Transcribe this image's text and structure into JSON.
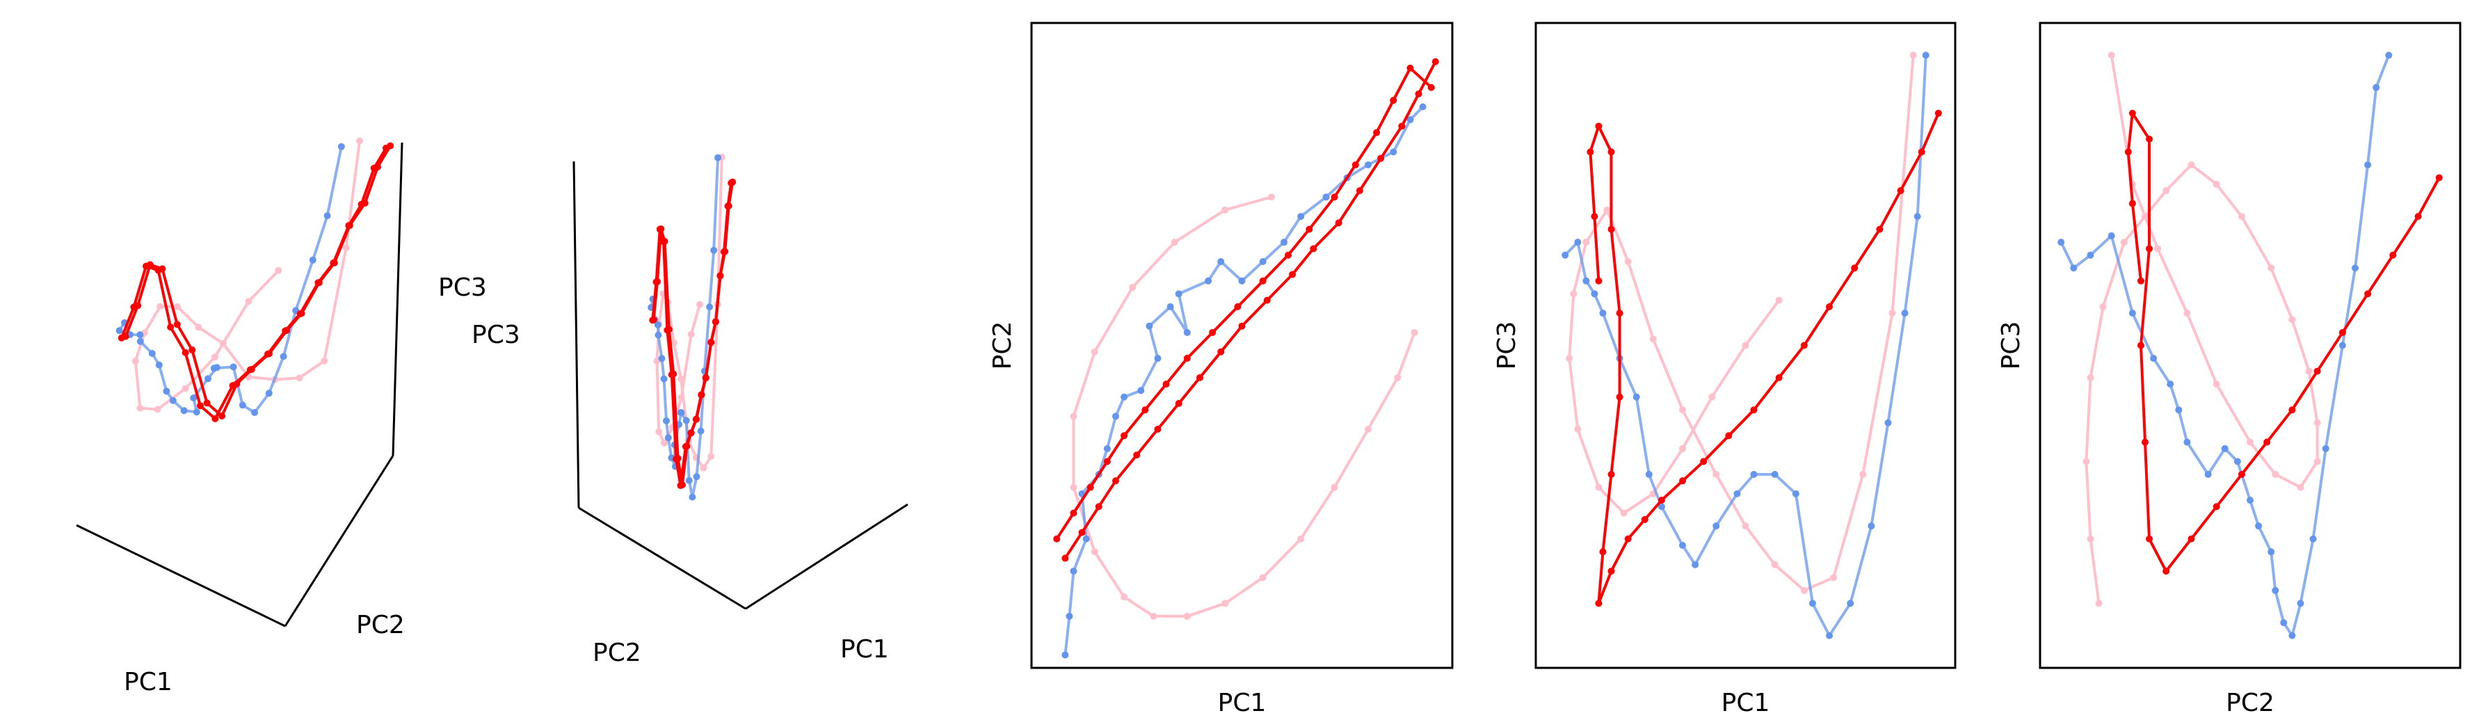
{
  "colors": {
    "pink": "#ffc0cb",
    "blue": "#6495ed",
    "red": "#ff0000"
  },
  "chart_data": [
    {
      "type": "line3d",
      "view": "PC1-PC2-PC3 (oblique)",
      "axis_labels": [
        "PC1",
        "PC2",
        "PC3"
      ],
      "grid": false,
      "ticks": false
    },
    {
      "type": "line3d",
      "view": "PC2-PC1-PC3 (oblique)",
      "axis_labels": [
        "PC2",
        "PC1",
        "PC3"
      ],
      "grid": false,
      "ticks": false
    },
    {
      "type": "line",
      "xlabel": "PC1",
      "ylabel": "PC2",
      "xlim": [
        0,
        1
      ],
      "ylim": [
        0,
        1
      ],
      "series": [
        {
          "color": "#ffc0cb",
          "x": [
            0.57,
            0.46,
            0.34,
            0.24,
            0.15,
            0.1,
            0.1,
            0.15,
            0.22,
            0.29,
            0.37,
            0.46,
            0.55,
            0.64,
            0.72,
            0.8,
            0.87,
            0.91
          ],
          "y": [
            0.73,
            0.71,
            0.66,
            0.59,
            0.49,
            0.39,
            0.28,
            0.18,
            0.11,
            0.08,
            0.08,
            0.1,
            0.14,
            0.2,
            0.28,
            0.37,
            0.45,
            0.52
          ]
        },
        {
          "color": "#6495ed",
          "x": [
            0.08,
            0.09,
            0.1,
            0.13,
            0.12,
            0.16,
            0.18,
            0.2,
            0.22,
            0.26,
            0.3,
            0.28,
            0.33,
            0.37,
            0.35,
            0.42,
            0.45,
            0.5,
            0.55,
            0.6,
            0.64,
            0.7,
            0.75,
            0.8,
            0.86,
            0.9,
            0.93
          ],
          "y": [
            0.02,
            0.08,
            0.15,
            0.2,
            0.27,
            0.3,
            0.34,
            0.39,
            0.42,
            0.43,
            0.48,
            0.53,
            0.56,
            0.52,
            0.58,
            0.6,
            0.63,
            0.6,
            0.63,
            0.66,
            0.7,
            0.73,
            0.76,
            0.78,
            0.8,
            0.85,
            0.87
          ]
        },
        {
          "color": "#ff0000",
          "x": [
            0.06,
            0.1,
            0.14,
            0.18,
            0.22,
            0.27,
            0.32,
            0.37,
            0.43,
            0.49,
            0.55,
            0.61,
            0.66,
            0.72,
            0.77,
            0.82,
            0.86,
            0.9,
            0.95
          ],
          "y": [
            0.2,
            0.24,
            0.28,
            0.32,
            0.36,
            0.4,
            0.44,
            0.48,
            0.52,
            0.56,
            0.6,
            0.64,
            0.68,
            0.73,
            0.78,
            0.83,
            0.88,
            0.93,
            0.9
          ]
        },
        {
          "color": "#ff0000",
          "x": [
            0.08,
            0.12,
            0.16,
            0.2,
            0.25,
            0.3,
            0.35,
            0.4,
            0.45,
            0.5,
            0.56,
            0.62,
            0.67,
            0.73,
            0.78,
            0.83,
            0.88,
            0.92,
            0.96
          ],
          "y": [
            0.17,
            0.21,
            0.25,
            0.29,
            0.33,
            0.37,
            0.41,
            0.45,
            0.49,
            0.53,
            0.57,
            0.61,
            0.65,
            0.69,
            0.74,
            0.79,
            0.84,
            0.89,
            0.94
          ]
        }
      ]
    },
    {
      "type": "line",
      "xlabel": "PC1",
      "ylabel": "PC3",
      "xlim": [
        0,
        1
      ],
      "ylim": [
        0,
        1
      ],
      "series": [
        {
          "color": "#ffc0cb",
          "x": [
            0.58,
            0.5,
            0.42,
            0.35,
            0.28,
            0.21,
            0.15,
            0.1,
            0.08,
            0.09,
            0.12,
            0.17,
            0.22,
            0.28,
            0.35,
            0.43,
            0.5,
            0.57,
            0.64,
            0.71,
            0.78,
            0.85,
            0.9
          ],
          "y": [
            0.57,
            0.5,
            0.42,
            0.34,
            0.27,
            0.24,
            0.28,
            0.37,
            0.48,
            0.58,
            0.66,
            0.71,
            0.63,
            0.51,
            0.4,
            0.3,
            0.22,
            0.16,
            0.12,
            0.14,
            0.3,
            0.55,
            0.95
          ]
        },
        {
          "color": "#6495ed",
          "x": [
            0.07,
            0.1,
            0.12,
            0.14,
            0.16,
            0.2,
            0.24,
            0.27,
            0.3,
            0.35,
            0.38,
            0.43,
            0.48,
            0.52,
            0.57,
            0.62,
            0.66,
            0.7,
            0.75,
            0.8,
            0.84,
            0.88,
            0.91,
            0.93
          ],
          "y": [
            0.64,
            0.66,
            0.6,
            0.58,
            0.55,
            0.48,
            0.42,
            0.3,
            0.25,
            0.19,
            0.16,
            0.22,
            0.27,
            0.3,
            0.3,
            0.27,
            0.1,
            0.05,
            0.1,
            0.22,
            0.38,
            0.55,
            0.7,
            0.95
          ]
        },
        {
          "color": "#ff0000",
          "x": [
            0.15,
            0.14,
            0.13,
            0.15,
            0.18,
            0.18,
            0.2,
            0.2,
            0.18,
            0.16,
            0.15,
            0.18,
            0.22,
            0.26,
            0.3,
            0.35,
            0.4,
            0.46,
            0.52,
            0.58,
            0.64,
            0.7,
            0.76,
            0.82,
            0.87,
            0.92,
            0.96
          ],
          "y": [
            0.6,
            0.7,
            0.8,
            0.84,
            0.8,
            0.68,
            0.55,
            0.42,
            0.3,
            0.18,
            0.1,
            0.15,
            0.2,
            0.23,
            0.26,
            0.29,
            0.32,
            0.36,
            0.4,
            0.45,
            0.5,
            0.56,
            0.62,
            0.68,
            0.74,
            0.8,
            0.86
          ]
        }
      ]
    },
    {
      "type": "line",
      "xlabel": "PC2",
      "ylabel": "PC3",
      "xlim": [
        0,
        1
      ],
      "ylim": [
        0,
        1
      ],
      "series": [
        {
          "color": "#ffc0cb",
          "x": [
            0.14,
            0.12,
            0.11,
            0.12,
            0.15,
            0.2,
            0.25,
            0.3,
            0.36,
            0.42,
            0.48,
            0.55,
            0.6,
            0.64,
            0.66,
            0.66,
            0.62,
            0.56,
            0.5,
            0.42,
            0.35,
            0.28,
            0.22,
            0.17
          ],
          "y": [
            0.1,
            0.2,
            0.32,
            0.45,
            0.56,
            0.66,
            0.7,
            0.74,
            0.78,
            0.75,
            0.7,
            0.62,
            0.54,
            0.46,
            0.38,
            0.32,
            0.28,
            0.3,
            0.35,
            0.44,
            0.55,
            0.65,
            0.75,
            0.95
          ]
        },
        {
          "color": "#6495ed",
          "x": [
            0.05,
            0.08,
            0.12,
            0.17,
            0.22,
            0.27,
            0.31,
            0.33,
            0.35,
            0.4,
            0.44,
            0.47,
            0.5,
            0.52,
            0.55,
            0.56,
            0.58,
            0.6,
            0.62,
            0.65,
            0.68,
            0.72,
            0.75,
            0.78,
            0.8,
            0.83
          ],
          "y": [
            0.66,
            0.62,
            0.64,
            0.67,
            0.55,
            0.48,
            0.44,
            0.4,
            0.35,
            0.3,
            0.34,
            0.32,
            0.26,
            0.22,
            0.18,
            0.12,
            0.07,
            0.05,
            0.1,
            0.2,
            0.34,
            0.5,
            0.62,
            0.78,
            0.9,
            0.95
          ]
        },
        {
          "color": "#ff0000",
          "x": [
            0.24,
            0.22,
            0.21,
            0.22,
            0.26,
            0.26,
            0.24,
            0.25,
            0.26,
            0.3,
            0.36,
            0.42,
            0.48,
            0.54,
            0.6,
            0.66,
            0.72,
            0.78,
            0.84,
            0.9,
            0.95
          ],
          "y": [
            0.6,
            0.72,
            0.8,
            0.86,
            0.82,
            0.65,
            0.5,
            0.35,
            0.2,
            0.15,
            0.2,
            0.25,
            0.3,
            0.35,
            0.4,
            0.46,
            0.52,
            0.58,
            0.64,
            0.7,
            0.76
          ]
        }
      ]
    }
  ]
}
